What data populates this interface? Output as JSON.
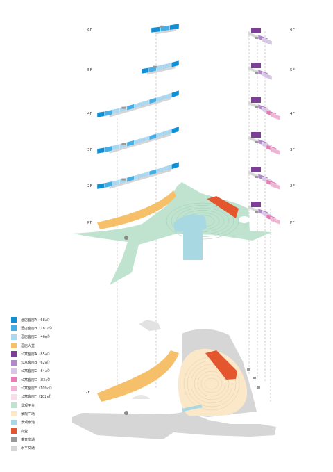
{
  "floors": {
    "f6": "6F",
    "f5": "5F",
    "f4": "4F",
    "f3": "3F",
    "f2": "2F",
    "pf": "PF",
    "gf": "GF"
  },
  "colors": {
    "hotel_a": "#0e8fd6",
    "hotel_b": "#45aee6",
    "hotel_c": "#a9d8f2",
    "hotel_lobby": "#f6c06a",
    "apt_a": "#7b3f98",
    "apt_b": "#b08ac8",
    "apt_c": "#d7c6e6",
    "apt_d": "#e47eb6",
    "apt_e": "#f0b4d4",
    "apt_f": "#f7dde9",
    "scenic_platform": "#bfe3cf",
    "scenic_plaza": "#fbe8c9",
    "scenic_water": "#a8d9e3",
    "commercial": "#e4572e",
    "vertical_traffic": "#999999",
    "horizontal_traffic": "#d6d6d6"
  },
  "legend": [
    {
      "label": "酒店客房A（68㎡）",
      "color_key": "hotel_a",
      "icon": "swatch"
    },
    {
      "label": "酒店客房B（181㎡）",
      "color_key": "hotel_b",
      "icon": "swatch"
    },
    {
      "label": "酒店客房C（46㎡）",
      "color_key": "hotel_c",
      "icon": "swatch"
    },
    {
      "label": "酒店大堂",
      "color_key": "hotel_lobby",
      "icon": "swatch"
    },
    {
      "label": "公寓客房A（85㎡）",
      "color_key": "apt_a",
      "icon": "swatch"
    },
    {
      "label": "公寓客房B（62㎡）",
      "color_key": "apt_b",
      "icon": "swatch"
    },
    {
      "label": "公寓客房C（64㎡）",
      "color_key": "apt_c",
      "icon": "swatch"
    },
    {
      "label": "公寓客房D（83㎡）",
      "color_key": "apt_d",
      "icon": "swatch"
    },
    {
      "label": "公寓客房E（109㎡）",
      "color_key": "apt_e",
      "icon": "swatch"
    },
    {
      "label": "公寓客房F（102㎡）",
      "color_key": "apt_f",
      "icon": "swatch"
    },
    {
      "label": "景观平台",
      "color_key": "scenic_platform",
      "icon": "swatch"
    },
    {
      "label": "景观广场",
      "color_key": "scenic_plaza",
      "icon": "swatch"
    },
    {
      "label": "景观水池",
      "color_key": "scenic_water",
      "icon": "swatch"
    },
    {
      "label": "商业",
      "color_key": "commercial",
      "icon": "swatch"
    },
    {
      "label": "垂直交通",
      "color_key": "vertical_traffic",
      "icon": "swatch"
    },
    {
      "label": "水平交通",
      "color_key": "horizontal_traffic",
      "icon": "swatch"
    }
  ]
}
